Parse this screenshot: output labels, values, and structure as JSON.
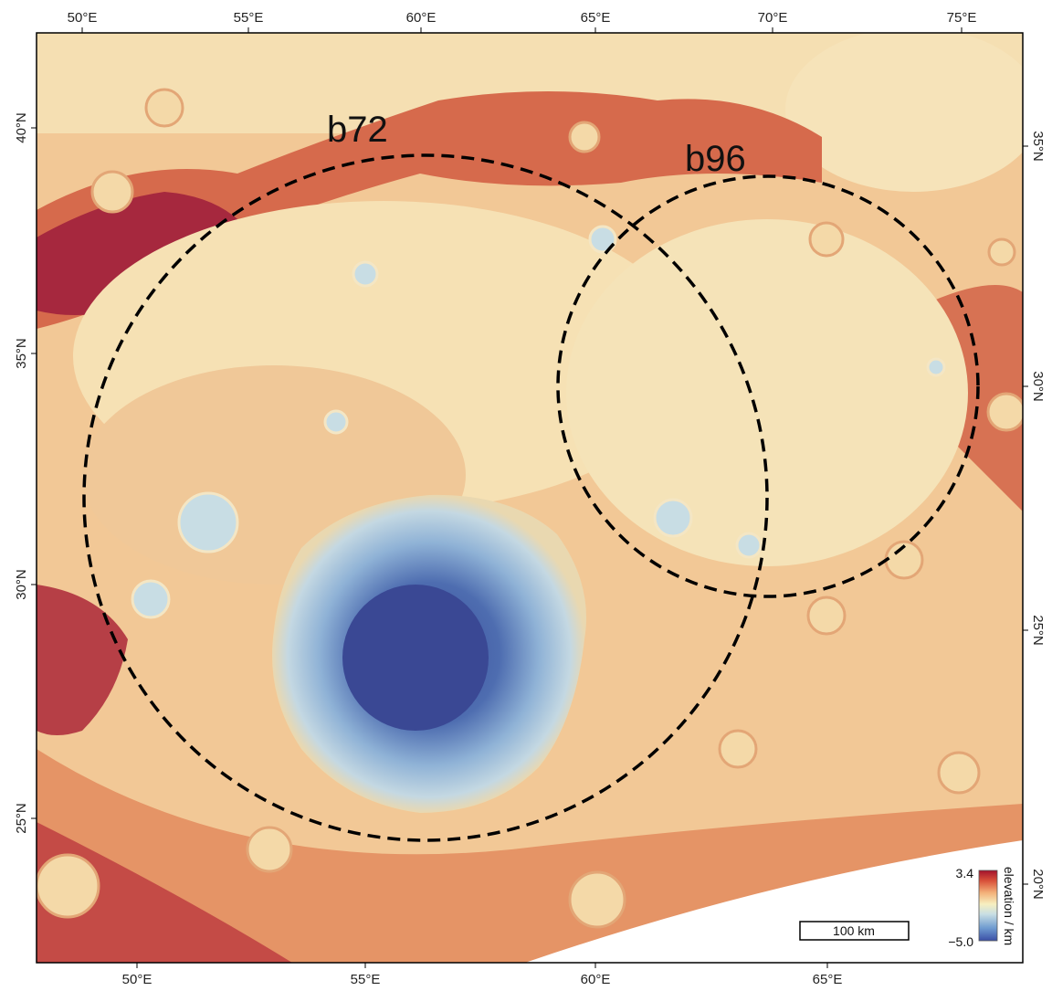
{
  "map": {
    "top_lon_ticks": [
      "50°E",
      "55°E",
      "60°E",
      "65°E",
      "70°E",
      "75°E"
    ],
    "bottom_lon_ticks": [
      "50°E",
      "55°E",
      "60°E",
      "65°E"
    ],
    "left_lat_ticks": [
      "40°N",
      "35°N",
      "30°N",
      "25°N"
    ],
    "right_lat_ticks": [
      "35°N",
      "30°N",
      "25°N",
      "20°N"
    ],
    "circles": [
      {
        "label": "b72"
      },
      {
        "label": "b96"
      }
    ],
    "scale_bar": {
      "label": "100 km"
    },
    "colorbar": {
      "max_label": "3.4",
      "min_label": "−5.0",
      "title": "elevation / km",
      "colors": [
        "#3a4fa6",
        "#6f9bd0",
        "#c9dfe4",
        "#f6efc0",
        "#f3b27a",
        "#d9523a",
        "#a3122c"
      ]
    }
  }
}
